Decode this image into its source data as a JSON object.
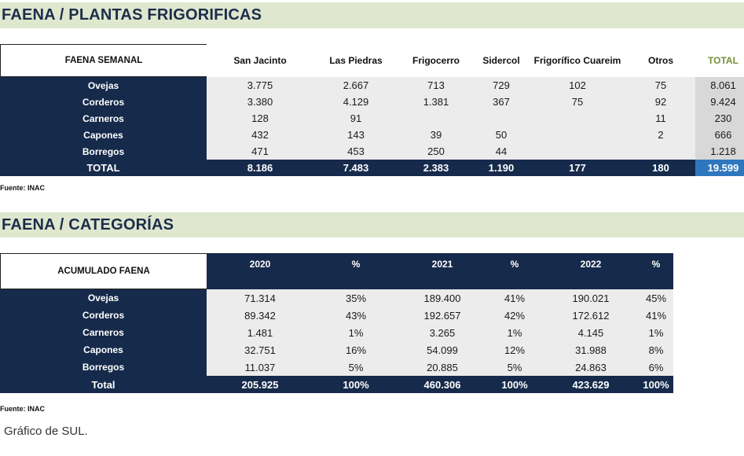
{
  "section1": {
    "title": "FAENA / PLANTAS FRIGORIFICAS",
    "corner_label": "FAENA SEMANAL",
    "columns": [
      "San Jacinto",
      "Las Piedras",
      "Frigocerro",
      "Sidercol",
      "Frigorífico Cuareim",
      "Otros",
      "TOTAL"
    ],
    "rows": [
      {
        "label": "Ovejas",
        "values": [
          "3.775",
          "2.667",
          "713",
          "729",
          "102",
          "75",
          "8.061"
        ]
      },
      {
        "label": "Corderos",
        "values": [
          "3.380",
          "4.129",
          "1.381",
          "367",
          "75",
          "92",
          "9.424"
        ]
      },
      {
        "label": "Carneros",
        "values": [
          "128",
          "91",
          "",
          "",
          "",
          "11",
          "230"
        ]
      },
      {
        "label": "Capones",
        "values": [
          "432",
          "143",
          "39",
          "50",
          "",
          "2",
          "666"
        ]
      },
      {
        "label": "Borregos",
        "values": [
          "471",
          "453",
          "250",
          "44",
          "",
          "",
          "1.218"
        ]
      }
    ],
    "total_row": {
      "label": "TOTAL",
      "values": [
        "8.186",
        "7.483",
        "2.383",
        "1.190",
        "177",
        "180",
        "19.599"
      ]
    },
    "source": "Fuente: INAC"
  },
  "section2": {
    "title": "FAENA / CATEGORÍAS",
    "corner_label": "ACUMULADO FAENA",
    "columns": [
      "2020",
      "%",
      "2021",
      "%",
      "2022",
      "%"
    ],
    "rows": [
      {
        "label": "Ovejas",
        "values": [
          "71.314",
          "35%",
          "189.400",
          "41%",
          "190.021",
          "45%"
        ]
      },
      {
        "label": "Corderos",
        "values": [
          "89.342",
          "43%",
          "192.657",
          "42%",
          "172.612",
          "41%"
        ]
      },
      {
        "label": "Carneros",
        "values": [
          "1.481",
          "1%",
          "3.265",
          "1%",
          "4.145",
          "1%"
        ]
      },
      {
        "label": "Capones",
        "values": [
          "32.751",
          "16%",
          "54.099",
          "12%",
          "31.988",
          "8%"
        ]
      },
      {
        "label": "Borregos",
        "values": [
          "11.037",
          "5%",
          "20.885",
          "5%",
          "24.863",
          "6%"
        ]
      }
    ],
    "total_row": {
      "label": "Total",
      "values": [
        "205.925",
        "100%",
        "460.306",
        "100%",
        "423.629",
        "100%"
      ]
    },
    "source": "Fuente: INAC"
  },
  "caption": "Gráfico de SUL."
}
